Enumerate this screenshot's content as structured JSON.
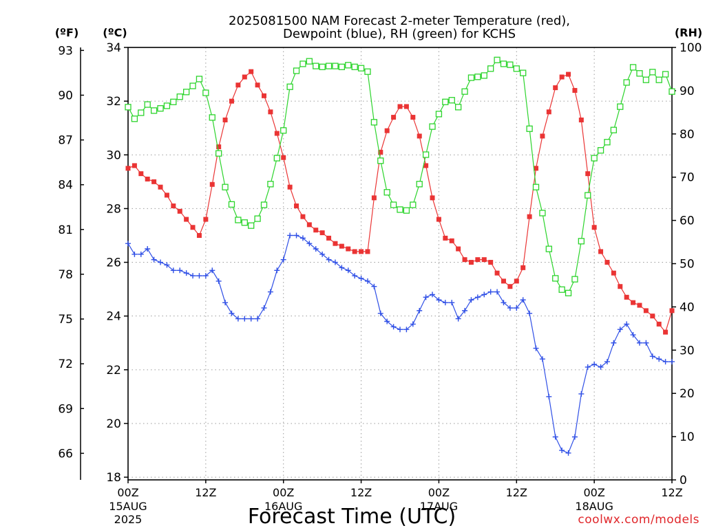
{
  "chart_data": {
    "type": "line",
    "title": {
      "line1": "2025081500 NAM Forecast 2-meter Temperature (red),",
      "line2": "Dewpoint (blue), RH (green) for KCHS"
    },
    "xlabel": "Forecast Time (UTC)",
    "x": [
      "2025-08-15T00:00Z",
      "2025-08-15T01:00Z",
      "2025-08-15T02:00Z",
      "2025-08-15T03:00Z",
      "2025-08-15T04:00Z",
      "2025-08-15T05:00Z",
      "2025-08-15T06:00Z",
      "2025-08-15T07:00Z",
      "2025-08-15T08:00Z",
      "2025-08-15T09:00Z",
      "2025-08-15T10:00Z",
      "2025-08-15T11:00Z",
      "2025-08-15T12:00Z",
      "2025-08-15T13:00Z",
      "2025-08-15T14:00Z",
      "2025-08-15T15:00Z",
      "2025-08-15T16:00Z",
      "2025-08-15T17:00Z",
      "2025-08-15T18:00Z",
      "2025-08-15T19:00Z",
      "2025-08-15T20:00Z",
      "2025-08-15T21:00Z",
      "2025-08-15T22:00Z",
      "2025-08-15T23:00Z",
      "2025-08-16T00:00Z",
      "2025-08-16T01:00Z",
      "2025-08-16T02:00Z",
      "2025-08-16T03:00Z",
      "2025-08-16T04:00Z",
      "2025-08-16T05:00Z",
      "2025-08-16T06:00Z",
      "2025-08-16T07:00Z",
      "2025-08-16T08:00Z",
      "2025-08-16T09:00Z",
      "2025-08-16T10:00Z",
      "2025-08-16T11:00Z",
      "2025-08-16T12:00Z",
      "2025-08-16T13:00Z",
      "2025-08-16T14:00Z",
      "2025-08-16T15:00Z",
      "2025-08-16T16:00Z",
      "2025-08-16T17:00Z",
      "2025-08-16T18:00Z",
      "2025-08-16T19:00Z",
      "2025-08-16T20:00Z",
      "2025-08-16T21:00Z",
      "2025-08-16T22:00Z",
      "2025-08-16T23:00Z",
      "2025-08-17T00:00Z",
      "2025-08-17T01:00Z",
      "2025-08-17T02:00Z",
      "2025-08-17T03:00Z",
      "2025-08-17T04:00Z",
      "2025-08-17T05:00Z",
      "2025-08-17T06:00Z",
      "2025-08-17T07:00Z",
      "2025-08-17T08:00Z",
      "2025-08-17T09:00Z",
      "2025-08-17T10:00Z",
      "2025-08-17T11:00Z",
      "2025-08-17T12:00Z",
      "2025-08-17T13:00Z",
      "2025-08-17T14:00Z",
      "2025-08-17T15:00Z",
      "2025-08-17T16:00Z",
      "2025-08-17T17:00Z",
      "2025-08-17T18:00Z",
      "2025-08-17T19:00Z",
      "2025-08-17T20:00Z",
      "2025-08-17T21:00Z",
      "2025-08-17T22:00Z",
      "2025-08-17T23:00Z",
      "2025-08-18T00:00Z",
      "2025-08-18T01:00Z",
      "2025-08-18T02:00Z",
      "2025-08-18T03:00Z",
      "2025-08-18T04:00Z",
      "2025-08-18T05:00Z",
      "2025-08-18T06:00Z",
      "2025-08-18T07:00Z",
      "2025-08-18T08:00Z",
      "2025-08-18T09:00Z",
      "2025-08-18T10:00Z",
      "2025-08-18T11:00Z",
      "2025-08-18T12:00Z"
    ],
    "x_ticks": [
      {
        "at": "2025-08-15T00:00Z",
        "label": "00Z",
        "day": "15AUG",
        "year": "2025"
      },
      {
        "at": "2025-08-15T12:00Z",
        "label": "12Z"
      },
      {
        "at": "2025-08-16T00:00Z",
        "label": "00Z",
        "day": "16AUG"
      },
      {
        "at": "2025-08-16T12:00Z",
        "label": "12Z"
      },
      {
        "at": "2025-08-17T00:00Z",
        "label": "00Z",
        "day": "17AUG"
      },
      {
        "at": "2025-08-17T12:00Z",
        "label": "12Z"
      },
      {
        "at": "2025-08-18T00:00Z",
        "label": "00Z",
        "day": "18AUG"
      },
      {
        "at": "2025-08-18T12:00Z",
        "label": "12Z"
      }
    ],
    "y_fahrenheit": {
      "label": "(ºF)",
      "ticks": [
        93,
        90,
        87,
        84,
        81,
        78,
        75,
        72,
        69,
        66
      ]
    },
    "y_celsius": {
      "label": "(ºC)",
      "range": [
        17.9,
        34
      ],
      "ticks": [
        34,
        32,
        30,
        28,
        26,
        24,
        22,
        20,
        18
      ]
    },
    "y_rh": {
      "label": "(RH)",
      "range": [
        0,
        100
      ],
      "ticks": [
        100,
        90,
        80,
        70,
        60,
        50,
        40,
        30,
        20,
        10,
        0
      ]
    },
    "grid": true,
    "temperature_c": {
      "color": "#ea3434",
      "values": [
        29.5,
        29.6,
        29.3,
        29.1,
        29.0,
        28.8,
        28.5,
        28.1,
        27.9,
        27.6,
        27.3,
        27.0,
        27.6,
        28.9,
        30.3,
        31.3,
        32.0,
        32.6,
        32.9,
        33.1,
        32.6,
        32.2,
        31.6,
        30.8,
        29.9,
        28.8,
        28.1,
        27.7,
        27.4,
        27.2,
        27.1,
        26.9,
        26.7,
        26.6,
        26.5,
        26.4,
        26.4,
        26.4,
        28.4,
        30.1,
        30.9,
        31.4,
        31.8,
        31.8,
        31.4,
        30.7,
        29.6,
        28.4,
        27.6,
        26.9,
        26.8,
        26.5,
        26.1,
        26.0,
        26.1,
        26.1,
        26.0,
        25.6,
        25.3,
        25.1,
        25.3,
        25.8,
        27.7,
        29.5,
        30.7,
        31.6,
        32.5,
        32.9,
        33.0,
        32.4,
        31.3,
        29.3,
        27.3,
        26.4,
        26.0,
        25.6,
        25.1,
        24.7,
        24.5,
        24.4,
        24.2,
        24.0,
        23.7,
        23.4,
        24.2
      ]
    },
    "dewpoint_c": {
      "color": "#2f4fe6",
      "values": [
        26.7,
        26.3,
        26.3,
        26.5,
        26.1,
        26.0,
        25.9,
        25.7,
        25.7,
        25.6,
        25.5,
        25.5,
        25.5,
        25.7,
        25.3,
        24.5,
        24.1,
        23.9,
        23.9,
        23.9,
        23.9,
        24.3,
        24.9,
        25.7,
        26.1,
        27.0,
        27.0,
        26.9,
        26.7,
        26.5,
        26.3,
        26.1,
        26.0,
        25.8,
        25.7,
        25.5,
        25.4,
        25.3,
        25.1,
        24.1,
        23.8,
        23.6,
        23.5,
        23.5,
        23.7,
        24.2,
        24.7,
        24.8,
        24.6,
        24.5,
        24.5,
        23.9,
        24.2,
        24.6,
        24.7,
        24.8,
        24.9,
        24.9,
        24.5,
        24.3,
        24.3,
        24.6,
        24.1,
        22.8,
        22.4,
        21.0,
        19.5,
        19.0,
        18.9,
        19.5,
        21.1,
        22.1,
        22.2,
        22.1,
        22.3,
        23.0,
        23.5,
        23.7,
        23.3,
        23.0,
        23.0,
        22.5,
        22.4,
        22.3,
        22.3
      ]
    },
    "rh_percent": {
      "color": "#2bd42b",
      "values": [
        86.2,
        83.5,
        84.9,
        86.8,
        85.4,
        85.9,
        86.5,
        87.4,
        88.6,
        89.7,
        91.1,
        92.7,
        89.5,
        83.8,
        75.5,
        67.7,
        63.7,
        60.1,
        59.5,
        58.8,
        60.4,
        63.6,
        68.4,
        74.4,
        80.8,
        90.9,
        94.6,
        96.2,
        96.8,
        95.7,
        95.5,
        95.7,
        95.7,
        95.5,
        95.9,
        95.5,
        95.2,
        94.4,
        82.7,
        73.8,
        66.5,
        63.6,
        62.5,
        62.3,
        63.6,
        68.4,
        75.2,
        81.7,
        84.6,
        87.4,
        87.8,
        86.2,
        89.8,
        93.0,
        93.2,
        93.5,
        95.1,
        97.1,
        96.2,
        96.0,
        95.1,
        94.1,
        81.2,
        67.7,
        61.7,
        53.4,
        46.6,
        44.0,
        43.2,
        46.4,
        55.2,
        65.8,
        74.4,
        76.2,
        78.1,
        80.9,
        86.3,
        91.9,
        95.4,
        94.0,
        92.5,
        94.3,
        92.5,
        93.8,
        89.8
      ]
    }
  },
  "footer": {
    "credit": "coolwx.com/models",
    "credit_color": "#e0262a"
  }
}
